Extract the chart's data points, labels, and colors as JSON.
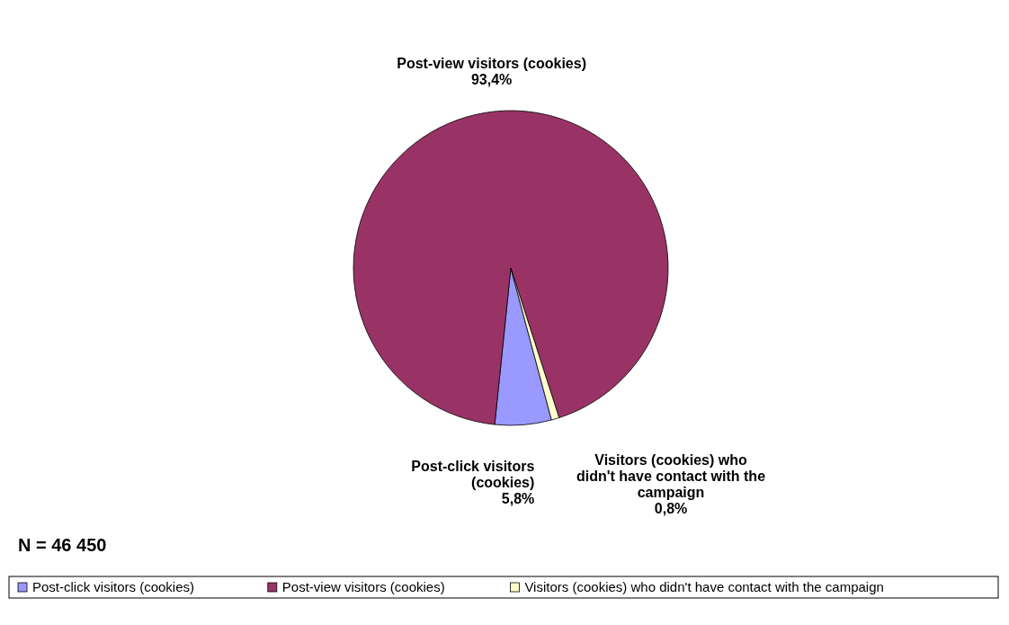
{
  "chart_data": {
    "type": "pie",
    "categories": [
      "Post-click visitors (cookies)",
      "Post-view visitors (cookies)",
      "Visitors (cookies) who didn't have contact with the campaign"
    ],
    "values": [
      5.8,
      93.4,
      0.8
    ],
    "value_labels": [
      "5,8%",
      "93,4%",
      "0,8%"
    ],
    "colors": [
      "#9999ff",
      "#993366",
      "#ffffcc"
    ],
    "legend": "bottom",
    "annotations": [
      "N = 46 450"
    ]
  }
}
